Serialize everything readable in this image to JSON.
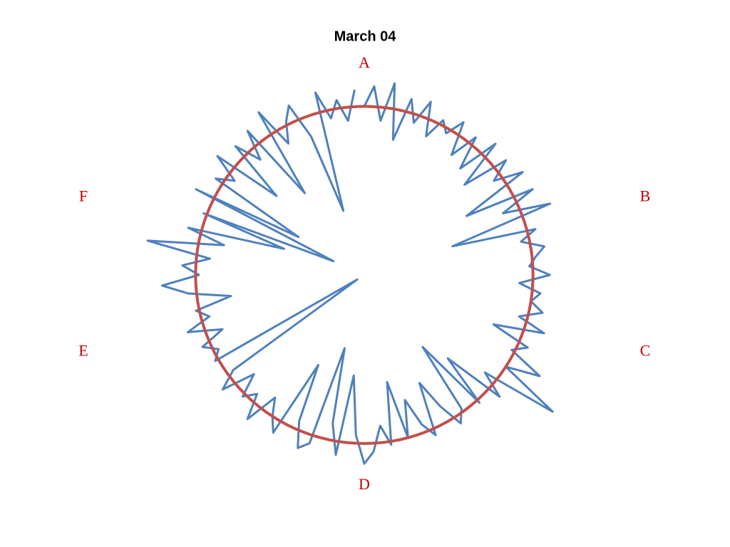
{
  "chart_data": {
    "type": "radar",
    "title": "March 04",
    "categories": [
      "A",
      null,
      null,
      null,
      null,
      null,
      null,
      null,
      null,
      null,
      null,
      null,
      null,
      null,
      null,
      null,
      null,
      null,
      null,
      null,
      "B",
      null,
      null,
      null,
      null,
      null,
      null,
      null,
      null,
      null,
      null,
      null,
      null,
      null,
      null,
      null,
      null,
      null,
      null,
      null,
      "C",
      null,
      null,
      null,
      null,
      null,
      null,
      null,
      null,
      null,
      null,
      null,
      null,
      null,
      null,
      null,
      null,
      null,
      null,
      null,
      "D",
      null,
      null,
      null,
      null,
      null,
      null,
      null,
      null,
      null,
      null,
      null,
      null,
      null,
      null,
      null,
      null,
      null,
      null,
      null,
      "E",
      null,
      null,
      null,
      null,
      null,
      null,
      null,
      null,
      null,
      null,
      null,
      null,
      null,
      null,
      null,
      null,
      null,
      null,
      null,
      "F",
      null,
      null,
      null,
      null,
      null,
      null,
      null,
      null,
      null,
      null,
      null,
      null,
      null,
      null,
      null,
      null,
      null,
      null,
      null
    ],
    "rlim": [
      0,
      1.5
    ],
    "series": [
      {
        "color": "#4f81bd",
        "values": [
          1.0,
          1.12,
          0.92,
          1.15,
          0.82,
          1.08,
          0.95,
          1.1,
          0.9,
          1.03,
          0.97,
          1.08,
          0.88,
          1.05,
          0.85,
          1.1,
          0.8,
          1.08,
          0.95,
          1.12,
          0.7,
          1.12,
          0.9,
          1.18,
          0.55,
          1.05,
          0.95,
          1.08,
          1.02,
          0.98,
          1.1,
          0.92,
          1.05,
          1.0,
          1.08,
          0.95,
          1.12,
          0.82,
          1.06,
          0.98,
          1.2,
          1.0,
          1.38,
          0.92,
          1.08,
          0.7,
          1.02,
          0.55,
          0.98,
          1.05,
          0.9,
          0.72,
          1.04,
          0.95,
          0.78,
          1.0,
          0.65,
          1.02,
          0.9,
          1.05,
          1.12,
          0.95,
          0.6,
          1.08,
          0.9,
          0.45,
          1.05,
          1.1,
          0.95,
          0.6,
          1.08,
          1.0,
          0.9,
          1.1,
          0.95,
          1.02,
          0.88,
          1.08,
          0.96,
          0.05,
          1.02,
          0.97,
          1.05,
          0.9,
          1.1,
          0.95,
          1.02,
          0.8,
          1.05,
          1.2,
          0.98,
          1.08,
          0.92,
          1.3,
          0.85,
          1.08,
          0.5,
          1.02,
          0.2,
          1.12,
          0.45,
          1.05,
          0.95,
          1.12,
          0.7,
          1.08,
          0.92,
          1.1,
          0.6,
          1.15,
          0.9,
          1.02,
          1.1,
          0.88,
          0.4,
          1.12,
          0.95,
          1.05,
          0.92,
          1.1
        ]
      },
      {
        "color": "#c0504d",
        "closed": true,
        "values": [
          1,
          1,
          1,
          1,
          1,
          1,
          1,
          1,
          1,
          1,
          1,
          1,
          1,
          1,
          1,
          1,
          1,
          1,
          1,
          1,
          1,
          1,
          1,
          1,
          1,
          1,
          1,
          1,
          1,
          1,
          1,
          1,
          1,
          1,
          1,
          1,
          1,
          1,
          1,
          1,
          1,
          1,
          1,
          1,
          1,
          1,
          1,
          1,
          1,
          1,
          1,
          1,
          1,
          1,
          1,
          1,
          1,
          1,
          1,
          1,
          1,
          1,
          1,
          1,
          1,
          1,
          1,
          1,
          1,
          1,
          1,
          1,
          1,
          1,
          1,
          1,
          1,
          1,
          1,
          1,
          1,
          1,
          1,
          1,
          1,
          1,
          1,
          1,
          1,
          1,
          1,
          1,
          1,
          1,
          1,
          1,
          1,
          1,
          1,
          1,
          1,
          1,
          1,
          1,
          1,
          1,
          1,
          1,
          1,
          1,
          1,
          1,
          1,
          1,
          1,
          1,
          1,
          1,
          1,
          1
        ]
      }
    ]
  }
}
